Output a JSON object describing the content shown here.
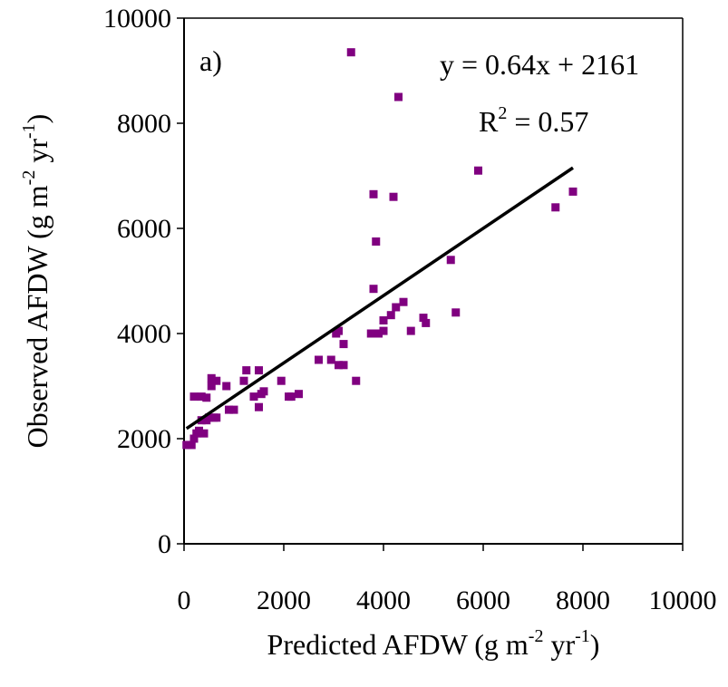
{
  "chart_data": {
    "type": "scatter",
    "panel_label": "a)",
    "xlabel": {
      "main": "Predicted AFDW (g m",
      "sup1": "-2",
      "mid": " yr",
      "sup2": "-1",
      "end": ")"
    },
    "ylabel": {
      "main": "Observed AFDW (g m",
      "sup1": "-2",
      "mid": " yr",
      "sup2": "-1",
      "end": ")"
    },
    "xlim": [
      0,
      10000
    ],
    "ylim": [
      0,
      10000
    ],
    "x_ticks": [
      "0",
      "2000",
      "4000",
      "6000",
      "8000",
      "10000"
    ],
    "y_ticks": [
      "0",
      "2000",
      "4000",
      "6000",
      "8000",
      "10000"
    ],
    "grid": false,
    "marker_color": "#800080",
    "line_color": "#000000",
    "trendline": {
      "equation": "y = 0.64x + 2161",
      "r2_prefix": "R",
      "r2_sup": "2",
      "r2_value": " = 0.57",
      "slope": 0.64,
      "intercept": 2161,
      "x_range": [
        50,
        7800
      ]
    },
    "points": [
      [
        50,
        1880
      ],
      [
        150,
        1880
      ],
      [
        200,
        2000
      ],
      [
        250,
        2100
      ],
      [
        300,
        2150
      ],
      [
        350,
        2350
      ],
      [
        400,
        2100
      ],
      [
        450,
        2350
      ],
      [
        500,
        2400
      ],
      [
        600,
        2400
      ],
      [
        650,
        2400
      ],
      [
        200,
        2800
      ],
      [
        350,
        2800
      ],
      [
        450,
        2780
      ],
      [
        550,
        3000
      ],
      [
        550,
        3150
      ],
      [
        650,
        3100
      ],
      [
        850,
        3000
      ],
      [
        900,
        2550
      ],
      [
        1000,
        2550
      ],
      [
        1200,
        3100
      ],
      [
        1250,
        3300
      ],
      [
        1400,
        2800
      ],
      [
        1500,
        2600
      ],
      [
        1500,
        3300
      ],
      [
        1550,
        2850
      ],
      [
        1600,
        2900
      ],
      [
        1950,
        3100
      ],
      [
        2100,
        2800
      ],
      [
        2150,
        2800
      ],
      [
        2300,
        2850
      ],
      [
        2700,
        3500
      ],
      [
        2950,
        3500
      ],
      [
        3050,
        4000
      ],
      [
        3100,
        4050
      ],
      [
        3100,
        3400
      ],
      [
        3200,
        3400
      ],
      [
        3200,
        3800
      ],
      [
        3350,
        9350
      ],
      [
        3450,
        3100
      ],
      [
        3750,
        4000
      ],
      [
        3800,
        4000
      ],
      [
        3800,
        4850
      ],
      [
        3800,
        6650
      ],
      [
        3850,
        5750
      ],
      [
        3900,
        4000
      ],
      [
        4000,
        4050
      ],
      [
        4000,
        4250
      ],
      [
        4150,
        4350
      ],
      [
        4200,
        6600
      ],
      [
        4250,
        4500
      ],
      [
        4300,
        8500
      ],
      [
        4400,
        4600
      ],
      [
        4550,
        4050
      ],
      [
        4800,
        4300
      ],
      [
        4850,
        4200
      ],
      [
        5350,
        5400
      ],
      [
        5450,
        4400
      ],
      [
        5900,
        7100
      ],
      [
        7450,
        6400
      ],
      [
        7800,
        6700
      ]
    ]
  }
}
